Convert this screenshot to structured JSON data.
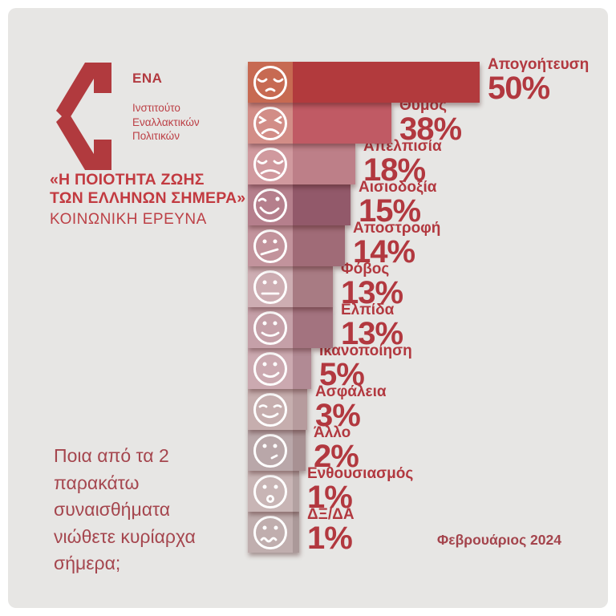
{
  "canvas": {
    "background": "#e7e6e4",
    "accent_red": "#b23a40"
  },
  "logo": {
    "org_abbr": "ENA",
    "org_name": "Ινστιτούτο\nΕναλλακτικών\nΠολιτικών"
  },
  "title": {
    "line1": "«Η ΠΟΙΟΤΗΤΑ ΖΩΗΣ",
    "line2": "ΤΩΝ ΕΛΛΗΝΩΝ ΣΗΜΕΡΑ»",
    "subtitle": "ΚΟΙΝΩΝΙΚΗ ΕΡΕΥΝΑ"
  },
  "question": "Ποια από τα 2 παρακάτω συναισθήματα νιώθετε κυρίαρχα σήμερα;",
  "footer": {
    "date": "Φεβρουάριος 2024"
  },
  "chart_data": {
    "type": "bar",
    "orientation": "horizontal",
    "unit": "%",
    "title": "Ποια από τα 2 παρακάτω συναισθήματα νιώθετε κυρίαρχα σήμερα;",
    "categories": [
      "Απογοήτευση",
      "Θυμός",
      "Απελπισία",
      "Αισιοδοξία",
      "Αποστροφή",
      "Φόβος",
      "Ελπίδα",
      "Ικανοποίηση",
      "Ασφάλεια",
      "Άλλο",
      "Ενθουσιασμός",
      "ΔΞ/ΔΑ"
    ],
    "values": [
      50,
      38,
      18,
      15,
      14,
      13,
      13,
      5,
      3,
      2,
      1,
      1
    ],
    "value_labels": [
      "50%",
      "38%",
      "18%",
      "15%",
      "14%",
      "13%",
      "13%",
      "5%",
      "3%",
      "2%",
      "1%",
      "1%"
    ],
    "icons": [
      "dejected-face-icon",
      "angry-face-icon",
      "despair-face-icon",
      "smiling-face-icon",
      "skeptical-face-icon",
      "neutral-face-icon",
      "slight-smile-face-icon",
      "smirk-face-icon",
      "content-face-icon",
      "unsure-face-icon",
      "surprised-face-icon",
      "confused-face-icon"
    ],
    "tile_colors": [
      "#c76a52",
      "#d28d87",
      "#d0999e",
      "#b57f8c",
      "#c2939c",
      "#cdadb2",
      "#c5a0a8",
      "#cba9b0",
      "#c6aeae",
      "#b9a7a9",
      "#c8b5b5",
      "#c0aeae"
    ],
    "bar_colors": [
      "#b23a3d",
      "#c05a64",
      "#bd7f88",
      "#92596a",
      "#a06b77",
      "#a87b83",
      "#a3737f",
      "#b18a94",
      "#b69b9d",
      "#a89193",
      "#b3a1a1",
      "#ab9999"
    ],
    "label_color": "#b2383f",
    "grid": false,
    "legend": false
  }
}
